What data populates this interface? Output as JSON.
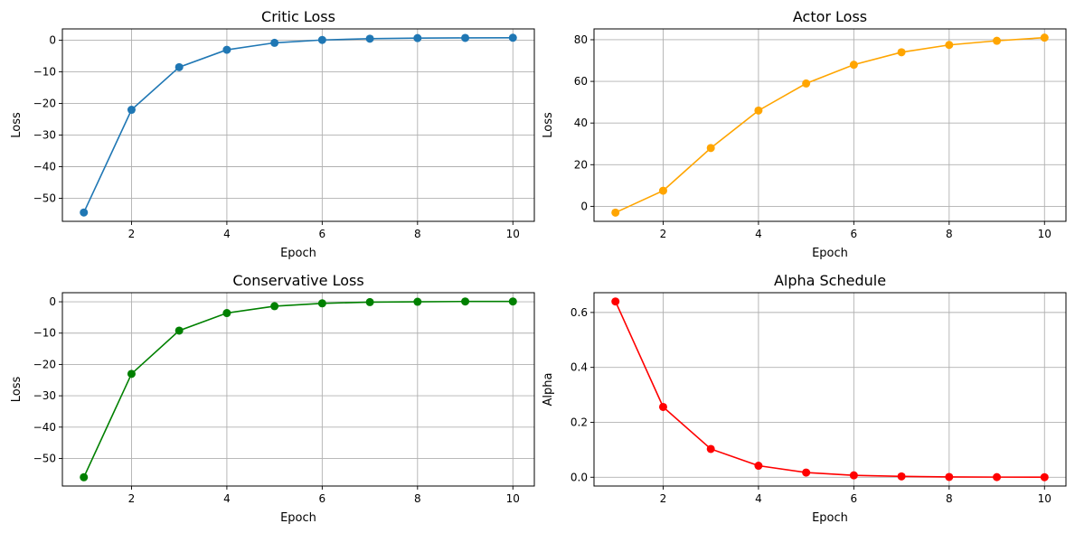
{
  "chart_data": [
    {
      "type": "line",
      "title": "Critic Loss",
      "xlabel": "Epoch",
      "ylabel": "Loss",
      "color": "#1f77b4",
      "x": [
        1,
        2,
        3,
        4,
        5,
        6,
        7,
        8,
        9,
        10
      ],
      "y": [
        -54.5,
        -22.0,
        -8.5,
        -3.0,
        -0.8,
        0.1,
        0.5,
        0.7,
        0.75,
        0.8
      ],
      "xlim": [
        0.55,
        10.45
      ],
      "ylim": [
        -57.3,
        3.6
      ],
      "xticks": [
        2,
        4,
        6,
        8,
        10
      ],
      "yticks": [
        0,
        -10,
        -20,
        -30,
        -40,
        -50
      ],
      "xtick_labels": [
        "2",
        "4",
        "6",
        "8",
        "10"
      ],
      "ytick_labels": [
        "0",
        "−10",
        "−20",
        "−30",
        "−40",
        "−50"
      ],
      "grid": true,
      "marker": "circle"
    },
    {
      "type": "line",
      "title": "Actor Loss",
      "xlabel": "Epoch",
      "ylabel": "Loss",
      "color": "#ffa500",
      "x": [
        1,
        2,
        3,
        4,
        5,
        6,
        7,
        8,
        9,
        10
      ],
      "y": [
        -3.0,
        7.5,
        28.0,
        46.0,
        59.0,
        68.0,
        74.0,
        77.5,
        79.5,
        81.0
      ],
      "xlim": [
        0.55,
        10.45
      ],
      "ylim": [
        -7.2,
        85.2
      ],
      "xticks": [
        2,
        4,
        6,
        8,
        10
      ],
      "yticks": [
        0,
        20,
        40,
        60,
        80
      ],
      "xtick_labels": [
        "2",
        "4",
        "6",
        "8",
        "10"
      ],
      "ytick_labels": [
        "0",
        "20",
        "40",
        "60",
        "80"
      ],
      "grid": true,
      "marker": "circle"
    },
    {
      "type": "line",
      "title": "Conservative Loss",
      "xlabel": "Epoch",
      "ylabel": "Loss",
      "color": "#008000",
      "x": [
        1,
        2,
        3,
        4,
        5,
        6,
        7,
        8,
        9,
        10
      ],
      "y": [
        -56.0,
        -23.0,
        -9.2,
        -3.6,
        -1.4,
        -0.5,
        -0.1,
        0.0,
        0.1,
        0.1
      ],
      "xlim": [
        0.55,
        10.45
      ],
      "ylim": [
        -58.8,
        2.9
      ],
      "xticks": [
        2,
        4,
        6,
        8,
        10
      ],
      "yticks": [
        0,
        -10,
        -20,
        -30,
        -40,
        -50
      ],
      "xtick_labels": [
        "2",
        "4",
        "6",
        "8",
        "10"
      ],
      "ytick_labels": [
        "0",
        "−10",
        "−20",
        "−30",
        "−40",
        "−50"
      ],
      "grid": true,
      "marker": "circle"
    },
    {
      "type": "line",
      "title": "Alpha Schedule",
      "xlabel": "Epoch",
      "ylabel": "Alpha",
      "color": "#ff0000",
      "x": [
        1,
        2,
        3,
        4,
        5,
        6,
        7,
        8,
        9,
        10
      ],
      "y": [
        0.64,
        0.256,
        0.103,
        0.042,
        0.017,
        0.007,
        0.003,
        0.001,
        0.0005,
        0.0002
      ],
      "xlim": [
        0.55,
        10.45
      ],
      "ylim": [
        -0.032,
        0.672
      ],
      "xticks": [
        2,
        4,
        6,
        8,
        10
      ],
      "yticks": [
        0.0,
        0.2,
        0.4,
        0.6
      ],
      "xtick_labels": [
        "2",
        "4",
        "6",
        "8",
        "10"
      ],
      "ytick_labels": [
        "0.0",
        "0.2",
        "0.4",
        "0.6"
      ],
      "grid": true,
      "marker": "circle"
    }
  ]
}
